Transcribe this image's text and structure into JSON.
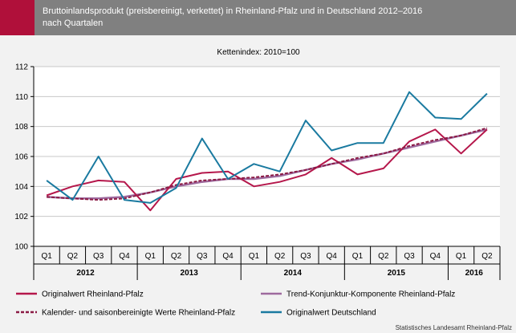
{
  "header": {
    "title": "Bruttoinlandsprodukt (preisbereinigt, verkettet) in Rheinland-Pfalz und in Deutschland 2012–2016\nnach Quartalen"
  },
  "source": "Statistisches Landesamt Rheinland-Pfalz",
  "colors": {
    "rlp": "#b5174b",
    "trend": "#9e6a9e",
    "saison": "#8b1a44",
    "de": "#1a7aa0",
    "header_bg": "#808080",
    "accent": "#b0103a"
  },
  "chart_data": {
    "type": "line",
    "subtitle": "Kettenindex: 2010=100",
    "categories": [
      "Q1",
      "Q2",
      "Q3",
      "Q4",
      "Q1",
      "Q2",
      "Q3",
      "Q4",
      "Q1",
      "Q2",
      "Q3",
      "Q4",
      "Q1",
      "Q2",
      "Q3",
      "Q4",
      "Q1",
      "Q2"
    ],
    "years": [
      {
        "label": "2012",
        "quarters": 4
      },
      {
        "label": "2013",
        "quarters": 4
      },
      {
        "label": "2014",
        "quarters": 4
      },
      {
        "label": "2015",
        "quarters": 4
      },
      {
        "label": "2016",
        "quarters": 2
      }
    ],
    "ylim": [
      100,
      112
    ],
    "yticks": [
      100,
      102,
      104,
      106,
      108,
      110,
      112
    ],
    "grid": true,
    "legend_position": "bottom",
    "series": [
      {
        "key": "rlp",
        "name": "Originalwert Rheinland-Pfalz",
        "style": "solid",
        "values": [
          103.4,
          104.0,
          104.4,
          104.3,
          102.4,
          104.5,
          104.9,
          105.0,
          104.0,
          104.3,
          104.8,
          105.9,
          104.8,
          105.2,
          107.0,
          107.8,
          106.2,
          107.8
        ]
      },
      {
        "key": "trend",
        "name": "Trend-Konjunktur-Komponente Rheinland-Pfalz",
        "style": "solid",
        "values": [
          103.3,
          103.2,
          103.2,
          103.3,
          103.6,
          104.0,
          104.3,
          104.5,
          104.5,
          104.7,
          105.1,
          105.5,
          105.8,
          106.2,
          106.6,
          107.0,
          107.4,
          107.8
        ]
      },
      {
        "key": "saison",
        "name": "Kalender- und saisonbereinigte Werte Rheinland-Pfalz",
        "style": "dashed",
        "values": [
          103.3,
          103.2,
          103.1,
          103.2,
          103.6,
          104.1,
          104.4,
          104.5,
          104.6,
          104.8,
          105.1,
          105.5,
          105.9,
          106.2,
          106.7,
          107.1,
          107.4,
          107.9
        ]
      },
      {
        "key": "de",
        "name": "Originalwert Deutschland",
        "style": "solid",
        "values": [
          104.4,
          103.1,
          106.0,
          103.1,
          102.9,
          103.9,
          107.2,
          104.5,
          105.5,
          105.0,
          108.4,
          106.4,
          106.9,
          106.9,
          110.3,
          108.6,
          108.5,
          110.2
        ]
      }
    ]
  }
}
